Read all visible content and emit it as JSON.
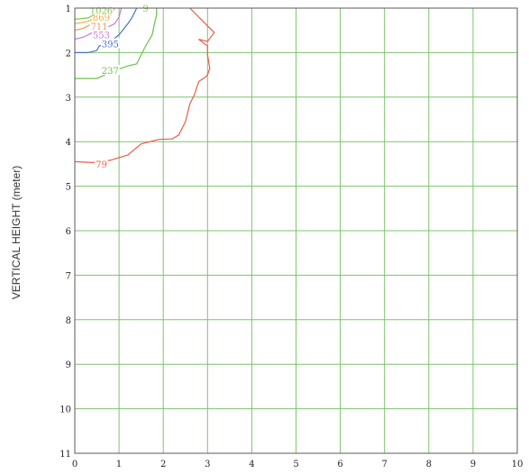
{
  "chart_data": {
    "type": "contour",
    "ylabel": "VERTICAL HEIGHT (meter)",
    "xlabel": "",
    "xlim": [
      0,
      10
    ],
    "ylim": [
      1,
      11
    ],
    "y_inverted": true,
    "grid": true,
    "x_ticks": [
      "0",
      "1",
      "2",
      "3",
      "4",
      "5",
      "6",
      "7",
      "8",
      "9",
      "10"
    ],
    "y_ticks": [
      "1",
      "2",
      "3",
      "4",
      "5",
      "6",
      "7",
      "8",
      "9",
      "10",
      "11"
    ],
    "colors": {
      "grid": "#7dc36b",
      "axis": "#5a5a5a"
    },
    "contours": [
      {
        "label": "79",
        "color": "#f05a4a",
        "label_at": [
          0.6,
          4.5
        ],
        "points": [
          [
            0,
            4.45
          ],
          [
            0.4,
            4.47
          ],
          [
            0.8,
            4.42
          ],
          [
            1.2,
            4.3
          ],
          [
            1.5,
            4.05
          ],
          [
            1.9,
            3.95
          ],
          [
            2.2,
            3.94
          ],
          [
            2.35,
            3.85
          ],
          [
            2.5,
            3.55
          ],
          [
            2.6,
            3.15
          ],
          [
            2.7,
            2.95
          ],
          [
            2.8,
            2.65
          ],
          [
            2.95,
            2.55
          ],
          [
            3.0,
            2.5
          ],
          [
            3.05,
            2.35
          ],
          [
            3.0,
            2.05
          ],
          [
            3.0,
            1.85
          ],
          [
            2.8,
            1.7
          ],
          [
            3.0,
            1.75
          ],
          [
            3.15,
            1.55
          ],
          [
            2.9,
            1.3
          ],
          [
            2.6,
            1.0
          ]
        ]
      },
      {
        "label": "237",
        "color": "#6cc04a",
        "label_at": [
          0.8,
          2.4
        ],
        "points": [
          [
            0,
            2.58
          ],
          [
            0.5,
            2.58
          ],
          [
            0.9,
            2.4
          ],
          [
            1.2,
            2.3
          ],
          [
            1.4,
            2.25
          ],
          [
            1.5,
            2.05
          ],
          [
            1.6,
            1.85
          ],
          [
            1.75,
            1.6
          ],
          [
            1.8,
            1.35
          ],
          [
            1.85,
            1.15
          ],
          [
            1.85,
            1.0
          ]
        ]
      },
      {
        "label": "395",
        "color": "#4a70d0",
        "label_at": [
          0.8,
          1.8
        ],
        "points": [
          [
            0,
            2.0
          ],
          [
            0.3,
            2.0
          ],
          [
            0.5,
            1.95
          ],
          [
            0.55,
            1.85
          ],
          [
            0.75,
            1.8
          ],
          [
            1.0,
            1.6
          ],
          [
            1.2,
            1.35
          ],
          [
            1.3,
            1.2
          ],
          [
            1.4,
            1.0
          ]
        ]
      },
      {
        "label": "553",
        "color": "#c878d8",
        "label_at": [
          0.6,
          1.6
        ],
        "points": [
          [
            0,
            1.7
          ],
          [
            0.2,
            1.65
          ],
          [
            0.4,
            1.55
          ],
          [
            0.7,
            1.45
          ],
          [
            0.9,
            1.35
          ],
          [
            1.0,
            1.2
          ],
          [
            1.05,
            1.0
          ]
        ]
      },
      {
        "label": "711",
        "color": "#f09858",
        "label_at": [
          0.55,
          1.4
        ],
        "points": [
          [
            0,
            1.5
          ],
          [
            0.2,
            1.45
          ],
          [
            0.4,
            1.35
          ],
          [
            0.6,
            1.28
          ],
          [
            0.8,
            1.18
          ],
          [
            0.9,
            1.0
          ]
        ]
      },
      {
        "label": "869",
        "color": "#f0b048",
        "label_at": [
          0.6,
          1.2
        ],
        "points": [
          [
            0,
            1.35
          ],
          [
            0.3,
            1.3
          ],
          [
            0.5,
            1.2
          ],
          [
            0.7,
            1.1
          ],
          [
            0.8,
            1.0
          ]
        ]
      },
      {
        "label": "1026",
        "color": "#88c848",
        "label_at": [
          0.6,
          1.05
        ],
        "points": [
          [
            0,
            1.25
          ],
          [
            0.3,
            1.22
          ],
          [
            0.5,
            1.12
          ],
          [
            0.65,
            1.05
          ],
          [
            0.72,
            1.0
          ]
        ]
      },
      {
        "label": "9",
        "color": "#88c848",
        "label_at": [
          1.6,
          1.0
        ],
        "points": []
      }
    ]
  }
}
